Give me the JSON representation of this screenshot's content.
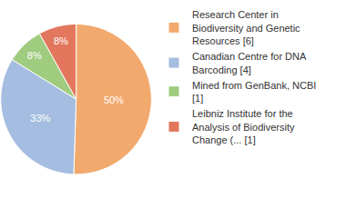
{
  "chart_data": {
    "type": "pie",
    "categories": [
      "Research Center in Biodiversity and Genetic Resources [6]",
      "Canadian Centre for DNA Barcoding [4]",
      "Mined from GenBank, NCBI [1]",
      "Leibniz Institute for the Analysis of Biodiversity Change (... [1]"
    ],
    "values": [
      50,
      33,
      8,
      8
    ],
    "value_labels": [
      "50%",
      "33%",
      "8%",
      "8%"
    ],
    "colors": [
      "#f2a96e",
      "#a4bde0",
      "#9fcc7f",
      "#e2775d"
    ],
    "data_labels": true,
    "legend": "right"
  }
}
